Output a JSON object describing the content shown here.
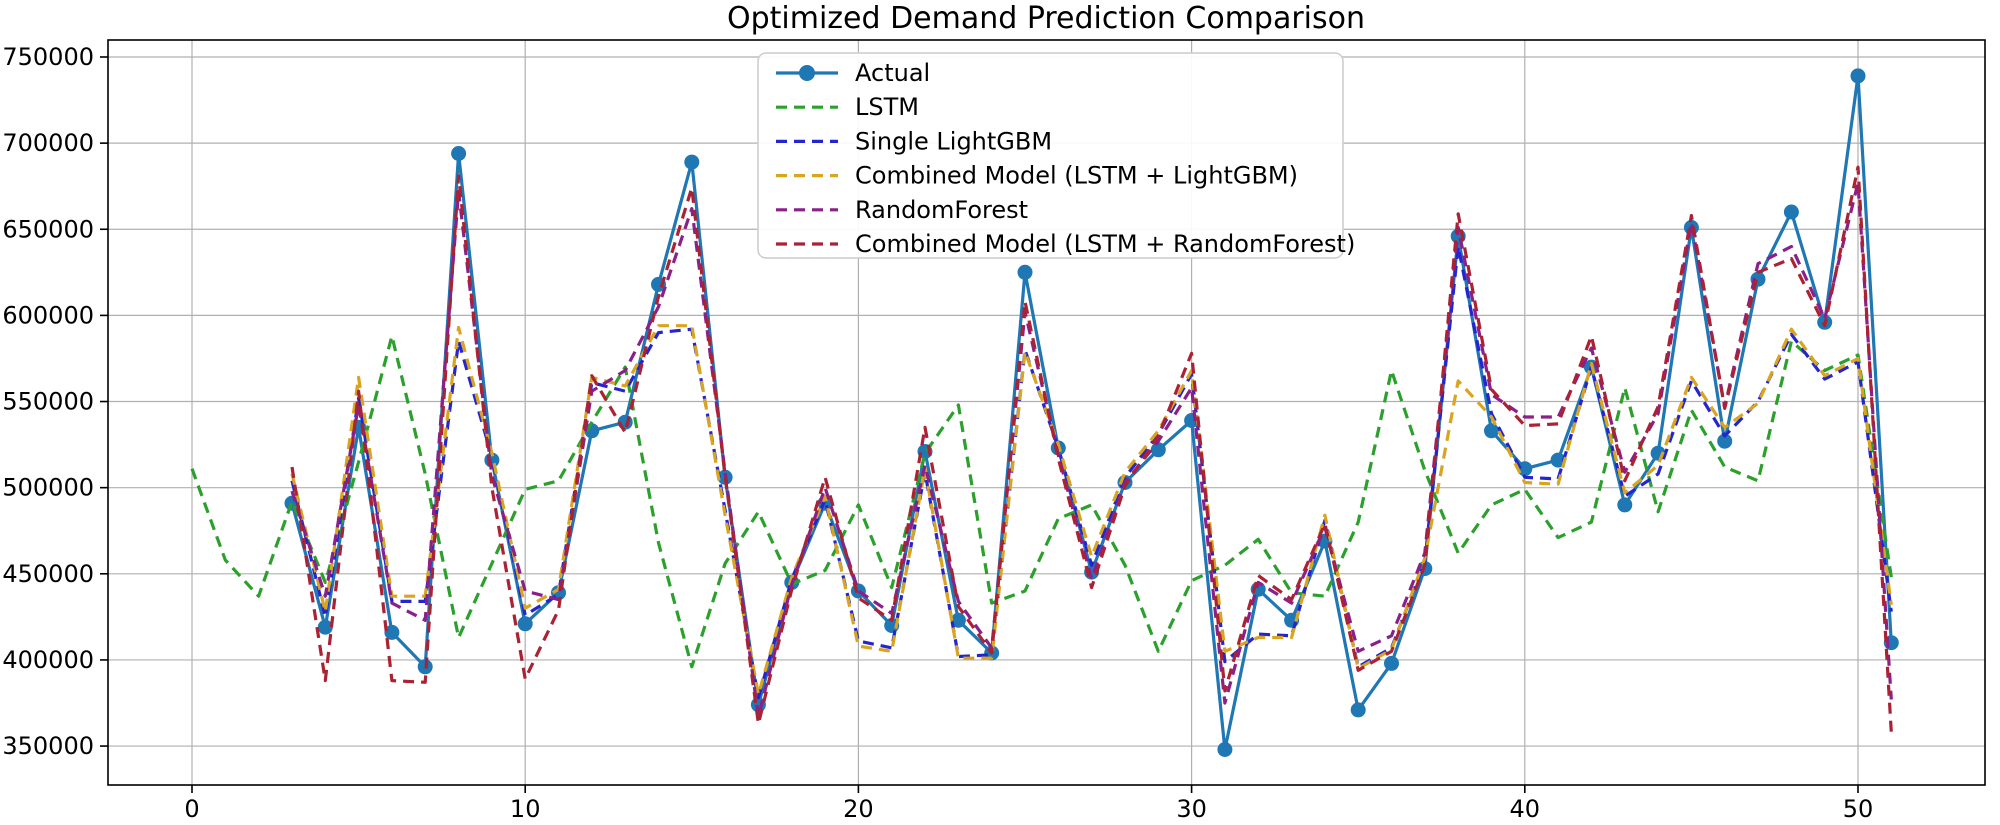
{
  "figure": {
    "background": "#ffffff",
    "grid_color": "#b0b0b0",
    "spine_color": "#000000"
  },
  "chart_data": {
    "type": "line",
    "title": "Optimized Demand Prediction Comparison",
    "xlabel": "",
    "ylabel": "",
    "x_ticks": [
      0,
      10,
      20,
      30,
      40,
      50
    ],
    "y_ticks": [
      350000,
      400000,
      450000,
      500000,
      550000,
      600000,
      650000,
      700000,
      750000
    ],
    "xlim": [
      -2.55,
      53.55
    ],
    "ylim": [
      328000,
      759000
    ],
    "grid": true,
    "legend_position": "upper center-left",
    "series": [
      {
        "name": "Actual",
        "color": "#1f77b4",
        "style": "solid",
        "marker": "circle",
        "x_start": 3,
        "values": [
          491000,
          419000,
          535000,
          416000,
          396000,
          694000,
          516000,
          421000,
          439000,
          533000,
          538000,
          618000,
          689000,
          506000,
          374000,
          445000,
          491000,
          440000,
          420000,
          521000,
          423000,
          404000,
          625000,
          523000,
          451000,
          503000,
          522000,
          539000,
          348000,
          441000,
          423000,
          469000,
          371000,
          398000,
          453000,
          646000,
          533000,
          511000,
          516000,
          570000,
          490000,
          520000,
          651000,
          527000,
          621000,
          660000,
          596000,
          739000,
          410000
        ]
      },
      {
        "name": "LSTM",
        "color": "#2ca02c",
        "style": "dashed",
        "marker": "none",
        "x_start": 0,
        "values": [
          511000,
          458000,
          437000,
          492000,
          445000,
          515000,
          588000,
          508000,
          413000,
          456000,
          499000,
          504000,
          538000,
          570000,
          468000,
          396000,
          456000,
          486000,
          444000,
          452000,
          490000,
          442000,
          520000,
          548000,
          433000,
          440000,
          482000,
          490000,
          455000,
          405000,
          446000,
          455000,
          470000,
          439000,
          437000,
          480000,
          568000,
          510000,
          462000,
          490000,
          499000,
          471000,
          480000,
          558000,
          486000,
          545000,
          512000,
          504000,
          585000,
          568000,
          577000,
          448000
        ]
      },
      {
        "name": "Single LightGBM",
        "color": "#2525d0",
        "style": "dashed",
        "marker": "none",
        "x_start": 3,
        "values": [
          504000,
          425000,
          552000,
          434000,
          434000,
          585000,
          518000,
          426000,
          438000,
          561000,
          556000,
          590000,
          592000,
          487000,
          378000,
          447000,
          493000,
          411000,
          407000,
          509000,
          402000,
          403000,
          580000,
          523000,
          455000,
          506000,
          531000,
          566000,
          399000,
          415000,
          414000,
          481000,
          396000,
          407000,
          457000,
          640000,
          543000,
          506000,
          505000,
          570000,
          495000,
          508000,
          562000,
          530000,
          550000,
          589000,
          563000,
          573000,
          428000
        ]
      },
      {
        "name": "Combined Model (LSTM + LightGBM)",
        "color": "#d9a520",
        "style": "dashed",
        "marker": "none",
        "x_start": 3,
        "values": [
          508000,
          428000,
          564000,
          437000,
          437000,
          593000,
          520000,
          430000,
          441000,
          564000,
          559000,
          594000,
          594000,
          484000,
          380000,
          448000,
          495000,
          408000,
          405000,
          511000,
          401000,
          401000,
          579000,
          525000,
          460000,
          509000,
          533000,
          568000,
          405000,
          413000,
          413000,
          484000,
          395000,
          406000,
          459000,
          562000,
          541000,
          503000,
          502000,
          572000,
          497000,
          513000,
          564000,
          535000,
          549000,
          592000,
          565000,
          575000,
          432000
        ]
      },
      {
        "name": "RandomForest",
        "color": "#8a2089",
        "style": "dashed",
        "marker": "none",
        "x_start": 3,
        "values": [
          498000,
          437000,
          548000,
          433000,
          423000,
          672000,
          507000,
          440000,
          435000,
          556000,
          568000,
          605000,
          662000,
          509000,
          367000,
          444000,
          500000,
          440000,
          427000,
          513000,
          434000,
          407000,
          602000,
          519000,
          447000,
          503000,
          527000,
          558000,
          375000,
          445000,
          433000,
          477000,
          405000,
          414000,
          462000,
          651000,
          554000,
          541000,
          541000,
          581000,
          509000,
          543000,
          654000,
          547000,
          630000,
          640000,
          598000,
          677000,
          377000
        ]
      },
      {
        "name": "Combined Model (LSTM + RandomForest)",
        "color": "#aa2233",
        "style": "dashed",
        "marker": "none",
        "x_start": 3,
        "values": [
          512000,
          388000,
          556000,
          388000,
          387000,
          681000,
          500000,
          389000,
          429000,
          565000,
          532000,
          611000,
          674000,
          507000,
          363000,
          441000,
          506000,
          436000,
          423000,
          535000,
          431000,
          404000,
          608000,
          517000,
          442000,
          501000,
          530000,
          578000,
          382000,
          449000,
          435000,
          479000,
          394000,
          405000,
          455000,
          659000,
          557000,
          536000,
          537000,
          588000,
          504000,
          547000,
          658000,
          546000,
          625000,
          633000,
          594000,
          686000,
          358000
        ]
      }
    ]
  }
}
